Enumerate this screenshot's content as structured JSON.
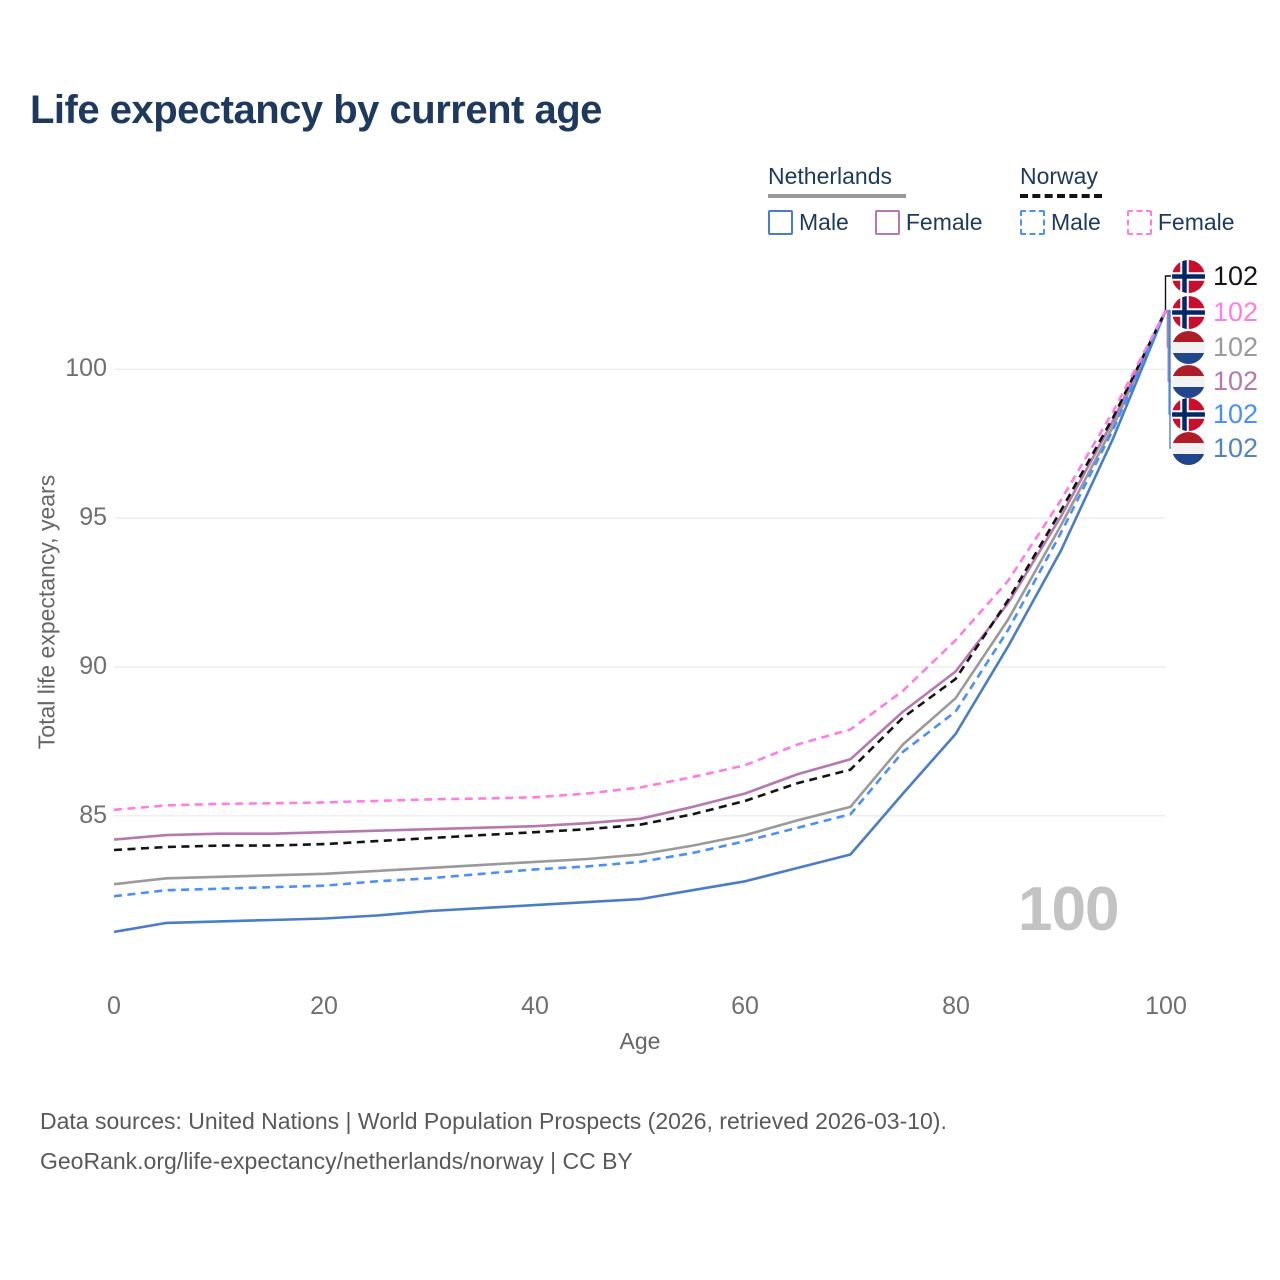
{
  "title": "Life expectancy by current age",
  "watermark": "100",
  "legend": {
    "groups": [
      {
        "label": "Netherlands",
        "underline_color": "#9a9a9a",
        "underline_style": "solid",
        "items": [
          {
            "label": "Male",
            "color": "#4a7dc4",
            "style": "solid"
          },
          {
            "label": "Female",
            "color": "#b678ae",
            "style": "solid"
          }
        ]
      },
      {
        "label": "Norway",
        "underline_color": "#141414",
        "underline_style": "dashed",
        "items": [
          {
            "label": "Male",
            "color": "#4a90f5",
            "style": "dashed"
          },
          {
            "label": "Female",
            "color": "#ff7de1",
            "style": "dashed"
          }
        ]
      }
    ]
  },
  "end_labels": [
    {
      "value": "102",
      "color": "#141414",
      "flag": "norway",
      "series": "Norway Total"
    },
    {
      "value": "102",
      "color": "#ff7de1",
      "flag": "norway",
      "series": "Norway Female"
    },
    {
      "value": "102",
      "color": "#9a9a9a",
      "flag": "netherlands",
      "series": "Netherlands Total"
    },
    {
      "value": "102",
      "color": "#b678ae",
      "flag": "netherlands",
      "series": "Netherlands Female"
    },
    {
      "value": "102",
      "color": "#4a90f5",
      "flag": "norway",
      "series": "Norway Male"
    },
    {
      "value": "102",
      "color": "#5282c4",
      "flag": "netherlands",
      "series": "Netherlands Male"
    }
  ],
  "source_line1": "Data sources: United Nations | World Population Prospects (2026, retrieved 2026-03-10).",
  "source_line2": "GeoRank.org/life-expectancy/netherlands/norway | CC BY",
  "chart_data": {
    "type": "line",
    "title": "Life expectancy by current age",
    "xlabel": "Age",
    "ylabel": "Total life expectancy, years",
    "xlim": [
      0,
      100
    ],
    "ylim": [
      80.5,
      103
    ],
    "grid": "horizontal",
    "legend_position": "top-right",
    "xticks": [
      0,
      20,
      40,
      60,
      80,
      100
    ],
    "yticks": [
      85,
      90,
      95,
      100
    ],
    "x": [
      0,
      5,
      10,
      15,
      20,
      25,
      30,
      35,
      40,
      45,
      50,
      55,
      60,
      65,
      70,
      75,
      80,
      85,
      90,
      95,
      100
    ],
    "series": [
      {
        "name": "Netherlands Total",
        "country": "Netherlands",
        "group": "Total",
        "color": "#9a9a9a",
        "style": "solid",
        "values": [
          82.7,
          82.9,
          82.95,
          83.0,
          83.05,
          83.15,
          83.25,
          83.35,
          83.45,
          83.55,
          83.7,
          84.0,
          84.35,
          84.85,
          85.3,
          87.4,
          88.95,
          91.6,
          94.75,
          98.1,
          102
        ]
      },
      {
        "name": "Netherlands Female",
        "country": "Netherlands",
        "group": "Female",
        "color": "#b678ae",
        "style": "solid",
        "values": [
          84.2,
          84.35,
          84.4,
          84.4,
          84.45,
          84.5,
          84.55,
          84.6,
          84.65,
          84.75,
          84.9,
          85.3,
          85.75,
          86.4,
          86.9,
          88.5,
          89.85,
          92.15,
          95.05,
          98.3,
          102
        ]
      },
      {
        "name": "Netherlands Male",
        "country": "Netherlands",
        "group": "Male",
        "color": "#4a7dc4",
        "style": "solid",
        "values": [
          81.1,
          81.4,
          81.45,
          81.5,
          81.55,
          81.65,
          81.8,
          81.9,
          82.0,
          82.1,
          82.2,
          82.5,
          82.8,
          83.25,
          83.7,
          85.75,
          87.75,
          90.7,
          93.9,
          97.7,
          102
        ]
      },
      {
        "name": "Norway Total",
        "country": "Norway",
        "group": "Total",
        "color": "#141414",
        "style": "dashed",
        "values": [
          83.85,
          83.95,
          84.0,
          84.0,
          84.05,
          84.15,
          84.25,
          84.35,
          84.45,
          84.55,
          84.7,
          85.05,
          85.5,
          86.1,
          86.55,
          88.3,
          89.6,
          92.25,
          95.25,
          98.4,
          102
        ]
      },
      {
        "name": "Norway Male",
        "country": "Norway",
        "group": "Male",
        "color": "#4a90f5",
        "style": "dashed",
        "values": [
          82.3,
          82.5,
          82.55,
          82.6,
          82.65,
          82.8,
          82.9,
          83.05,
          83.2,
          83.3,
          83.45,
          83.75,
          84.15,
          84.6,
          85.05,
          87.15,
          88.5,
          91.25,
          94.5,
          98.0,
          102
        ]
      },
      {
        "name": "Norway Female",
        "country": "Norway",
        "group": "Female",
        "color": "#ff7de1",
        "style": "dashed",
        "values": [
          85.2,
          85.35,
          85.4,
          85.42,
          85.45,
          85.5,
          85.55,
          85.58,
          85.62,
          85.75,
          85.95,
          86.3,
          86.7,
          87.4,
          87.9,
          89.2,
          90.9,
          92.9,
          95.6,
          98.6,
          102
        ]
      }
    ]
  }
}
